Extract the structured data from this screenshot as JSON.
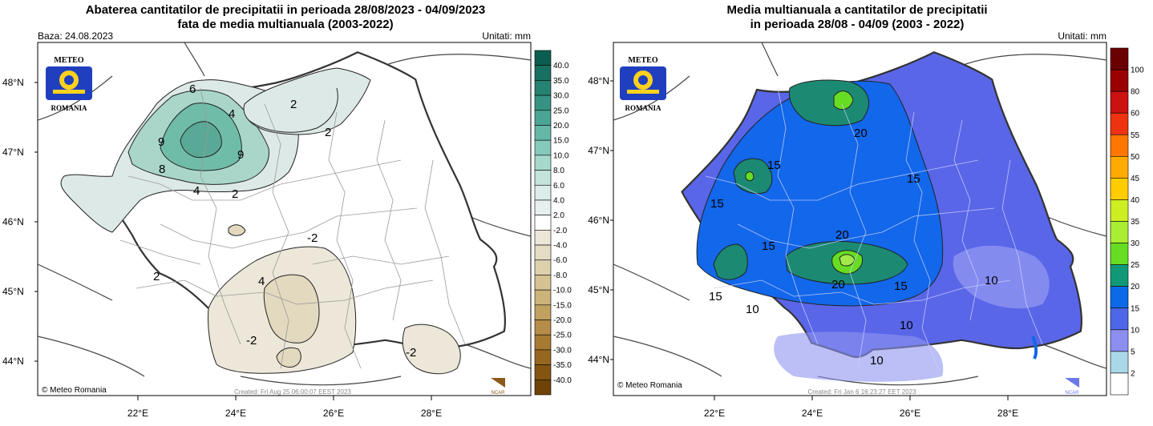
{
  "left_panel": {
    "title_line1": "Abaterea cantitatilor de precipitatii in perioada 28/08/2023 - 04/09/2023",
    "title_line2": "fata de media multianuala (2003-2022)",
    "base_label": "Baza: 24.08.2023",
    "units_label": "Unitati: mm",
    "logo_top": "METEO",
    "logo_bottom": "ROMANIA",
    "credit": "© Meteo Romania",
    "created": "Created: Fri Aug 25 06:00:07 EEST 2023",
    "corner_logo": "NCAR",
    "lat_labels": [
      "48°N",
      "47°N",
      "46°N",
      "45°N",
      "44°N"
    ],
    "lon_labels": [
      "22°E",
      "24°E",
      "26°E",
      "28°E"
    ],
    "contour_labels": [
      "6",
      "4",
      "2",
      "2",
      "9",
      "9",
      "8",
      "4",
      "2",
      "-2",
      "4",
      "2",
      "-2",
      "-2"
    ],
    "legend": {
      "labels": [
        "40.0",
        "35.0",
        "30.0",
        "25.0",
        "20.0",
        "15.0",
        "10.0",
        "8.0",
        "6.0",
        "4.0",
        "2.0",
        "-2.0",
        "-4.0",
        "-6.0",
        "-8.0",
        "-10.0",
        "-15.0",
        "-20.0",
        "-25.0",
        "-30.0",
        "-35.0",
        "-40.0"
      ],
      "colors": [
        "#0b5e4f",
        "#187061",
        "#268272",
        "#369383",
        "#4ba595",
        "#65b7a8",
        "#86c9bb",
        "#a6d8cc",
        "#c4e3da",
        "#dcecea",
        "#e8efef",
        "#ffffff",
        "#ece6d8",
        "#e5dcc4",
        "#ddd0ad",
        "#d5c394",
        "#ccb37a",
        "#c1a160",
        "#b58d48",
        "#a77a33",
        "#966720",
        "#835511",
        "#6e4305"
      ]
    }
  },
  "right_panel": {
    "title_line1": "Media multianuala a cantitatilor de precipitatii",
    "title_line2": "in perioada 28/08 - 04/09 (2003 - 2022)",
    "units_label": "Unitati: mm",
    "logo_top": "METEO",
    "logo_bottom": "ROMANIA",
    "credit": "© Meteo Romania",
    "created": "Created: Fri Jan  6 16:23:27 EET 2023",
    "corner_logo": "NCAR",
    "lat_labels": [
      "48°N",
      "47°N",
      "46°N",
      "45°N",
      "44°N"
    ],
    "lon_labels": [
      "22°E",
      "24°E",
      "26°E",
      "28°E"
    ],
    "contour_labels": [
      "15",
      "20",
      "15",
      "15",
      "15",
      "20",
      "15",
      "20",
      "15",
      "10",
      "10",
      "10",
      "10"
    ],
    "legend": {
      "labels": [
        "100",
        "80",
        "60",
        "55",
        "50",
        "45",
        "40",
        "35",
        "30",
        "25",
        "20",
        "15",
        "10",
        "5",
        "2"
      ],
      "colors": [
        "#6b0000",
        "#990000",
        "#cc1111",
        "#ee3311",
        "#ff7700",
        "#ffaa00",
        "#ffcc00",
        "#ccee22",
        "#aaee33",
        "#66dd22",
        "#119977",
        "#0c6ae8",
        "#4d67e8",
        "#8c8ff0",
        "#aad8e6",
        "#ffffff"
      ]
    }
  },
  "colors": {
    "land_white": "#ffffff",
    "left_wet_light": "#dde9e6",
    "left_wet_mid": "#a9d6c9",
    "left_wet_dark": "#6fbca9",
    "left_dry": "#ece7d8",
    "left_dry_mid": "#e3d9bf",
    "right_base": "#5a66e8",
    "right_15": "#1267ea",
    "right_20": "#1c8a72",
    "right_25": "#66dd22",
    "right_30": "#a4e94a",
    "right_low": "#8e95f0"
  }
}
